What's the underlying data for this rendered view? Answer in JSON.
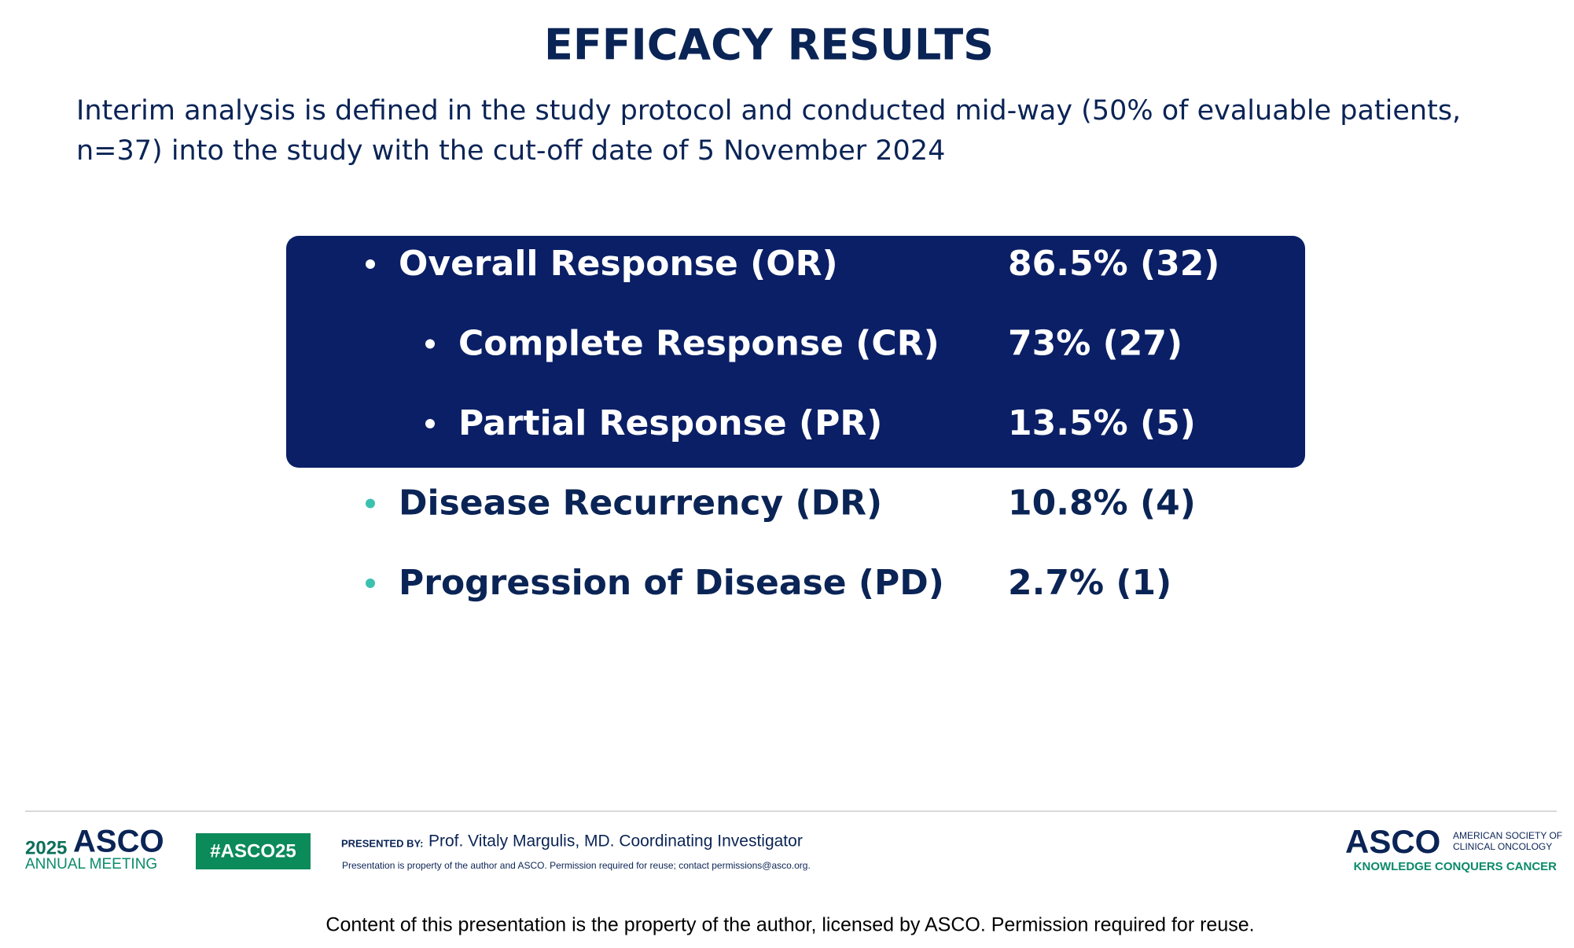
{
  "header": {
    "title": "EFFICACY RESULTS",
    "intro_lines": [
      "Interim analysis is defined in the study protocol and conducted mid-way (50% of evaluable patients,",
      "n=37) into the study with the cut-off date of 5 November 2024"
    ]
  },
  "results": {
    "rows": [
      {
        "label": "Overall Response (OR)",
        "value": "86.5% (32)",
        "level": 1,
        "highlighted": true
      },
      {
        "label": "Complete Response  (CR)",
        "value": "73% (27)",
        "level": 2,
        "highlighted": true
      },
      {
        "label": "Partial Response  (PR)",
        "value": "13.5% (5)",
        "level": 2,
        "highlighted": true
      },
      {
        "label": "Disease Recurrency  (DR)",
        "value": "10.8% (4)",
        "level": 1,
        "highlighted": false
      },
      {
        "label": "Progression of Disease (PD)",
        "value": "2.7% (1)",
        "level": 1,
        "highlighted": false
      }
    ]
  },
  "footer": {
    "meeting_year": "2025",
    "meeting_brand": "ASCO",
    "meeting_name": "ANNUAL MEETING",
    "hashtag": "#ASCO25",
    "presented_by_label": "PRESENTED BY:",
    "presenter": "Prof. Vitaly Margulis, MD. Coordinating Investigator",
    "notice": "Presentation is property of the author and ASCO. Permission required for reuse; contact permissions@asco.org.",
    "logo_brand": "ASCO",
    "logo_line1": "AMERICAN SOCIETY OF",
    "logo_line2": "CLINICAL ONCOLOGY",
    "logo_tagline": "KNOWLEDGE CONQUERS CANCER"
  },
  "caption": "Content of this presentation is the property of the author, licensed by ASCO. Permission required for reuse."
}
